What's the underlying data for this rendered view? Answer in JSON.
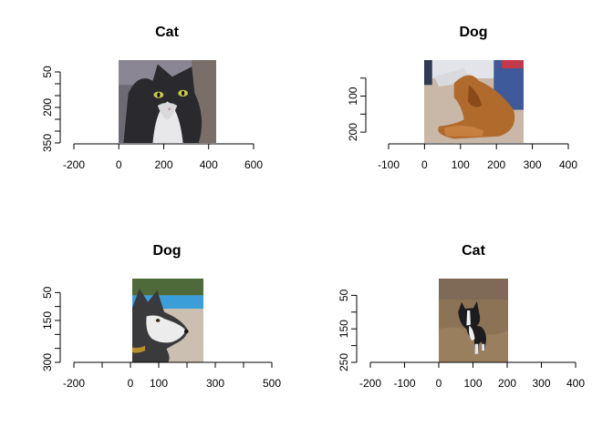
{
  "chart_data": [
    {
      "type": "image",
      "title": "Cat",
      "xlim": [
        -250,
        600
      ],
      "ylim": [
        350,
        0
      ],
      "image_extent": {
        "x": [
          0,
          430
        ],
        "y": [
          0,
          350
        ]
      },
      "x_ticks": [
        -200,
        0,
        200,
        400,
        600
      ],
      "y_ticks": [
        50,
        100,
        150,
        200,
        250,
        300,
        350
      ],
      "y_tick_labels": [
        "50",
        "",
        "",
        "200",
        "",
        "",
        "350"
      ],
      "photo": "cat-tuxedo-photo"
    },
    {
      "type": "image",
      "title": "Dog",
      "xlim": [
        -100,
        400
      ],
      "ylim": [
        230,
        0
      ],
      "image_extent": {
        "x": [
          0,
          275
        ],
        "y": [
          0,
          230
        ]
      },
      "x_ticks": [
        -100,
        0,
        100,
        200,
        300,
        400
      ],
      "y_ticks": [
        50,
        100,
        150,
        200
      ],
      "y_tick_labels": [
        "",
        "100",
        "",
        "200"
      ],
      "photo": "dog-golden-lying-photo"
    },
    {
      "type": "image",
      "title": "Dog",
      "xlim": [
        -200,
        500
      ],
      "ylim": [
        300,
        0
      ],
      "image_extent": {
        "x": [
          0,
          250
        ],
        "y": [
          0,
          300
        ]
      },
      "x_ticks": [
        -200,
        -100,
        0,
        100,
        200,
        300,
        400,
        500
      ],
      "x_tick_labels": [
        "-200",
        "",
        "0",
        "100",
        "",
        "300",
        "",
        "500"
      ],
      "y_ticks": [
        50,
        100,
        150,
        200,
        250,
        300
      ],
      "y_tick_labels": [
        "50",
        "",
        "150",
        "",
        "",
        "300"
      ],
      "photo": "dog-husky-photo"
    },
    {
      "type": "image",
      "title": "Cat",
      "xlim": [
        -200,
        400
      ],
      "ylim": [
        250,
        0
      ],
      "image_extent": {
        "x": [
          0,
          200
        ],
        "y": [
          0,
          250
        ]
      },
      "x_ticks": [
        -200,
        -100,
        0,
        100,
        200,
        300,
        400
      ],
      "y_ticks": [
        50,
        100,
        150,
        200,
        250
      ],
      "y_tick_labels": [
        "50",
        "",
        "150",
        "",
        "250"
      ],
      "photo": "dog-boston-terrier-photo"
    }
  ]
}
